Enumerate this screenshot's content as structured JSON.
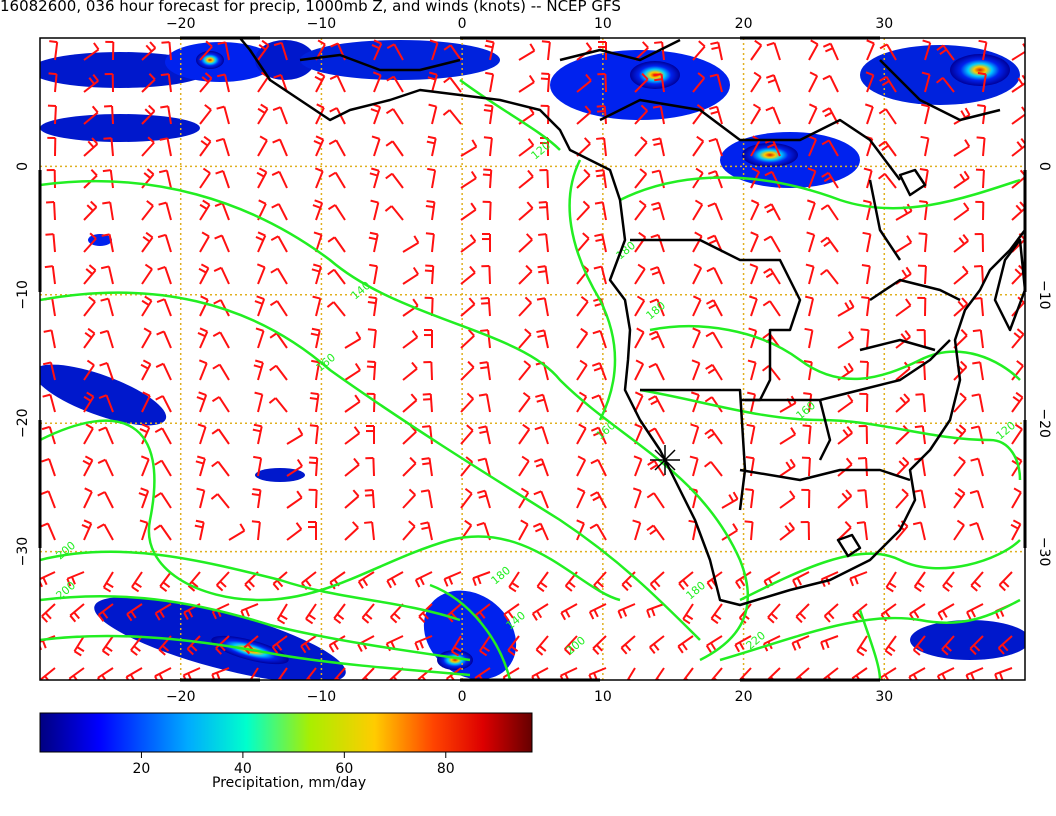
{
  "title": "16082600, 036 hour forecast for precip, 1000mb Z, and winds (knots) -- NCEP GFS",
  "colors": {
    "contour": "#22ee22",
    "barb": "#ff1111",
    "grid": "#e0b020",
    "coast": "#000000"
  },
  "map": {
    "lon_range": [
      -30,
      40
    ],
    "lat_range": [
      -40,
      10
    ],
    "lon_ticks": [
      "−20",
      "−10",
      "0",
      "10",
      "20",
      "30"
    ],
    "lat_ticks": [
      "0",
      "−10",
      "−20",
      "−30"
    ],
    "contour_labels": [
      "120",
      "140",
      "160",
      "160",
      "180",
      "180",
      "200",
      "200",
      "200",
      "220",
      "180",
      "180",
      "140",
      "160",
      "120"
    ]
  },
  "colorbar": {
    "ticks": [
      "20",
      "40",
      "60",
      "80"
    ],
    "label": "Precipitation, mm/day"
  }
}
